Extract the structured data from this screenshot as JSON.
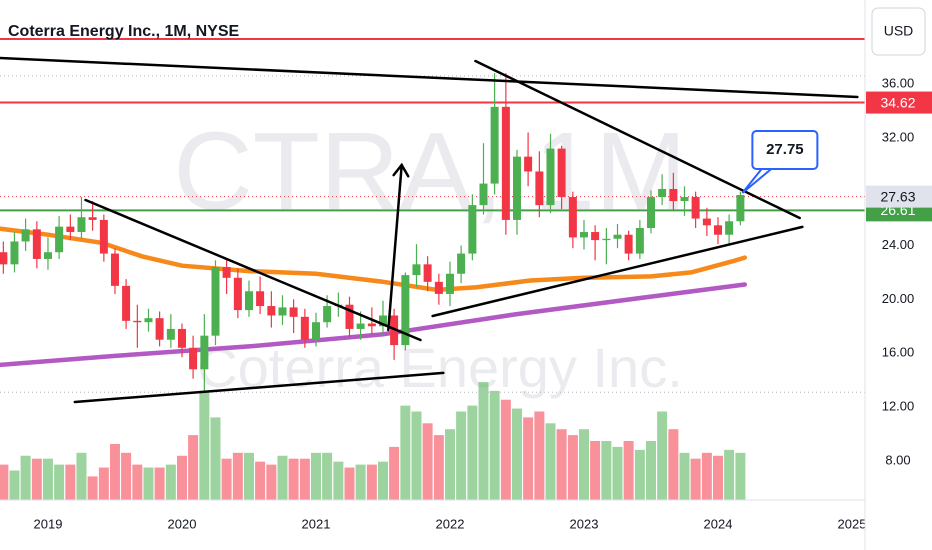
{
  "chart_data": {
    "type": "candlestick",
    "title": "Coterra Energy Inc., 1M, NYSE",
    "watermark": [
      "CTRA, 1M",
      "Coterra Energy Inc."
    ],
    "currency": "USD",
    "up_color": "#4caf50",
    "down_color": "#f23645",
    "x": [
      2018.667,
      2018.75,
      2018.833,
      2018.917,
      2019,
      2019.083,
      2019.167,
      2019.25,
      2019.333,
      2019.417,
      2019.5,
      2019.583,
      2019.667,
      2019.75,
      2019.833,
      2019.917,
      2020,
      2020.083,
      2020.167,
      2020.25,
      2020.333,
      2020.417,
      2020.5,
      2020.583,
      2020.667,
      2020.75,
      2020.833,
      2020.917,
      2021,
      2021.083,
      2021.167,
      2021.25,
      2021.333,
      2021.417,
      2021.5,
      2021.583,
      2021.667,
      2021.75,
      2021.833,
      2021.917,
      2022,
      2022.083,
      2022.167,
      2022.25,
      2022.333,
      2022.417,
      2022.5,
      2022.583,
      2022.667,
      2022.75,
      2022.833,
      2022.917,
      2023,
      2023.083,
      2023.167,
      2023.25,
      2023.333,
      2023.417,
      2023.5,
      2023.583,
      2023.667,
      2023.75,
      2023.833,
      2023.917,
      2024,
      2024.083,
      2024.167
    ],
    "open": [
      23.5,
      22.6,
      24.3,
      25.2,
      23.0,
      23.5,
      25.4,
      25.0,
      26.1,
      25.9,
      23.4,
      21.0,
      18.4,
      18.3,
      18.6,
      17.0,
      17.8,
      16.4,
      14.8,
      17.3,
      22.4,
      21.6,
      19.2,
      20.6,
      19.5,
      18.8,
      19.4,
      18.7,
      17.0,
      18.3,
      19.5,
      19.6,
      17.8,
      18.2,
      18.0,
      18.8,
      16.6,
      21.8,
      22.6,
      21.3,
      20.4,
      21.9,
      23.4,
      27.0,
      28.6,
      34.3,
      25.9,
      30.6,
      29.5,
      27.0,
      31.2,
      27.6,
      24.6,
      25.0,
      24.4,
      24.5,
      24.8,
      23.4,
      25.3,
      27.6,
      28.2,
      27.3,
      27.6,
      26.0,
      25.5,
      24.8,
      25.8
    ],
    "high": [
      24.3,
      25.0,
      26.0,
      25.8,
      24.6,
      26.2,
      26.3,
      27.6,
      27.3,
      26.3,
      23.8,
      21.5,
      19.6,
      19.3,
      19.1,
      18.9,
      18.2,
      17.3,
      18.9,
      22.9,
      23.0,
      22.3,
      21.4,
      21.7,
      20.6,
      20.3,
      20.0,
      19.3,
      19.0,
      20.3,
      20.5,
      20.2,
      19.1,
      19.4,
      19.9,
      19.3,
      22.0,
      24.1,
      23.2,
      21.9,
      22.8,
      24.0,
      27.8,
      31.6,
      36.8,
      36.8,
      31.1,
      32.4,
      31.0,
      32.3,
      31.4,
      28.0,
      25.9,
      25.5,
      25.3,
      25.6,
      25.1,
      25.9,
      28.1,
      29.3,
      29.4,
      28.4,
      28.0,
      26.8,
      26.1,
      26.3,
      28.0
    ],
    "low": [
      21.9,
      22.0,
      23.6,
      22.3,
      22.2,
      23.0,
      24.4,
      24.5,
      25.1,
      22.8,
      20.4,
      17.8,
      16.4,
      17.6,
      16.5,
      16.4,
      15.7,
      14.1,
      13.1,
      16.6,
      20.4,
      18.6,
      18.7,
      18.9,
      17.9,
      18.1,
      17.5,
      16.4,
      16.5,
      17.9,
      18.7,
      17.2,
      17.0,
      17.4,
      17.3,
      15.5,
      16.2,
      20.9,
      20.6,
      19.6,
      19.5,
      21.2,
      22.9,
      26.3,
      27.8,
      24.8,
      24.8,
      28.4,
      26.1,
      26.4,
      26.7,
      23.8,
      23.7,
      22.9,
      22.6,
      23.8,
      22.9,
      23.0,
      24.9,
      27.0,
      26.6,
      26.2,
      25.3,
      24.7,
      24.1,
      24.0,
      25.5
    ],
    "close": [
      22.6,
      24.3,
      25.2,
      23.0,
      23.5,
      25.4,
      25.0,
      26.1,
      25.9,
      23.4,
      21.0,
      18.4,
      18.3,
      18.6,
      17.0,
      17.8,
      16.4,
      14.8,
      17.3,
      22.4,
      21.6,
      19.2,
      20.6,
      19.5,
      18.8,
      19.4,
      18.7,
      17.0,
      18.3,
      19.5,
      19.6,
      17.8,
      18.2,
      18.0,
      18.8,
      16.6,
      21.8,
      22.6,
      21.3,
      20.4,
      21.9,
      23.4,
      27.0,
      28.6,
      34.3,
      25.9,
      30.6,
      29.5,
      27.0,
      31.2,
      27.6,
      24.6,
      25.0,
      24.4,
      24.5,
      24.8,
      23.4,
      25.3,
      27.6,
      28.2,
      27.3,
      27.6,
      26.0,
      25.5,
      24.8,
      25.8,
      27.75
    ],
    "volume": [
      60,
      50,
      75,
      70,
      70,
      60,
      60,
      80,
      40,
      55,
      95,
      80,
      60,
      55,
      55,
      60,
      75,
      110,
      185,
      140,
      70,
      80,
      80,
      65,
      60,
      75,
      70,
      70,
      80,
      80,
      65,
      55,
      60,
      60,
      65,
      90,
      160,
      150,
      130,
      110,
      120,
      150,
      160,
      200,
      185,
      170,
      155,
      140,
      150,
      130,
      120,
      110,
      120,
      100,
      100,
      90,
      100,
      85,
      100,
      150,
      120,
      80,
      70,
      80,
      75,
      85,
      80
    ],
    "xlim": [
      2018.642,
      2025.097
    ],
    "ylim": [
      5.09,
      42.24
    ],
    "xticks": [
      2019,
      2020,
      2021,
      2022,
      2023,
      2024,
      2025
    ],
    "yticks": [
      {
        "value": 8,
        "label": "8.00"
      },
      {
        "value": 12,
        "label": "12.00"
      },
      {
        "value": 16,
        "label": "16.00"
      },
      {
        "value": 20,
        "label": "20.00"
      },
      {
        "value": 24,
        "label": "24.00"
      },
      {
        "value": 32,
        "label": "32.00"
      },
      {
        "value": 36,
        "label": "36.00"
      }
    ],
    "overlays": [
      {
        "color": "#f57c00",
        "x": [
          2018.6,
          2019.0,
          2019.4,
          2019.7,
          2020.0,
          2020.5,
          2021.0,
          2021.5,
          2021.9,
          2022.2,
          2022.6,
          2023.0,
          2023.5,
          2023.8,
          2024.1,
          2024.2
        ],
        "values": [
          25.3,
          24.8,
          24.2,
          23.2,
          22.5,
          22.1,
          21.9,
          21.3,
          20.7,
          20.9,
          21.4,
          21.6,
          21.7,
          22.0,
          22.8,
          23.1
        ]
      },
      {
        "color": "#ab47bc",
        "x": [
          2018.6,
          2019.5,
          2020.5,
          2021.5,
          2022.5,
          2023.5,
          2024.2
        ],
        "values": [
          15.1,
          15.8,
          16.5,
          17.4,
          18.9,
          20.2,
          21.1
        ]
      }
    ],
    "lines": [
      {
        "color": "#000000",
        "x": [
          2018.64,
          2025.04
        ],
        "values": [
          37.93,
          35.03
        ]
      },
      {
        "color": "#000000",
        "x": [
          2022.19,
          2024.61
        ],
        "values": [
          37.71,
          26.04
        ]
      },
      {
        "color": "#000000",
        "x": [
          2019.28,
          2021.78
        ],
        "values": [
          27.38,
          16.98
        ]
      },
      {
        "color": "#000000",
        "x": [
          2019.2,
          2021.95
        ],
        "values": [
          12.37,
          14.53
        ]
      },
      {
        "color": "#000000",
        "x": [
          2021.87,
          2024.63
        ],
        "values": [
          18.76,
          25.38
        ]
      },
      {
        "color": "#000000",
        "x": [
          2021.54,
          2021.64
        ],
        "values": [
          17.72,
          29.98
        ],
        "arrow": true
      }
    ],
    "hlines": [
      {
        "value": 39.34,
        "color": "#f23645"
      },
      {
        "value": 34.62,
        "color": "#f23645"
      },
      {
        "value": 26.61,
        "color": "#43a047"
      }
    ],
    "dotted_lines": [
      {
        "value": 36.6,
        "color": "#b2b5be"
      },
      {
        "value": 27.63,
        "color": "#f23645"
      },
      {
        "value": 13.1,
        "color": "#b2b5be"
      }
    ],
    "price_labels": [
      {
        "value": 34.62,
        "color": "#f23645",
        "text_color": "#ffffff"
      },
      {
        "value": 26.61,
        "color": "#43a047",
        "text_color": "#ffffff"
      },
      {
        "value": 27.63,
        "color": "#e0e3eb",
        "text_color": "#131722"
      }
    ],
    "callout": {
      "value": 27.75,
      "color": "#2962ff"
    }
  }
}
